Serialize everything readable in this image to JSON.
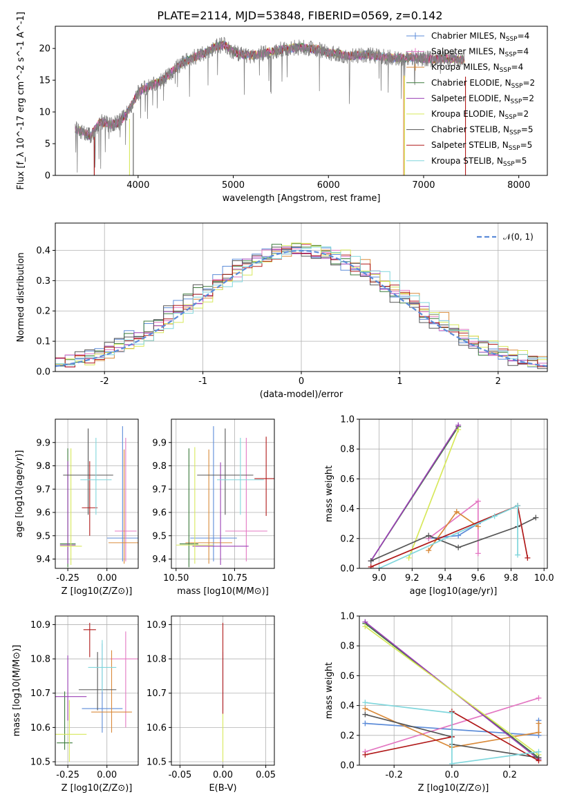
{
  "figure": {
    "title": "PLATE=2114, MJD=53848, FIBERID=0569, z=0.142"
  },
  "models": [
    {
      "name": "Chabrier MILES, N$_{SSP}$=4",
      "label_main": "Chabrier MILES, N",
      "label_sub": "SSP",
      "label_tail": "=4",
      "color": "#5B8BD8"
    },
    {
      "name": "Salpeter MILES, N$_{SSP}$=4",
      "label_main": "Salpeter MILES, N",
      "label_sub": "SSP",
      "label_tail": "=4",
      "color": "#E377C2"
    },
    {
      "name": "Kroupa MILES, N$_{SSP}$=4",
      "label_main": "Kroupa MILES, N",
      "label_sub": "SSP",
      "label_tail": "=4",
      "color": "#D98A3A"
    },
    {
      "name": "Chabrier ELODIE, N$_{SSP}$=2",
      "label_main": "Chabrier ELODIE, N",
      "label_sub": "SSP",
      "label_tail": "=2",
      "color": "#3A7A3A"
    },
    {
      "name": "Salpeter ELODIE, N$_{SSP}$=2",
      "label_main": "Salpeter ELODIE, N",
      "label_sub": "SSP",
      "label_tail": "=2",
      "color": "#9A3FB5"
    },
    {
      "name": "Kroupa ELODIE, N$_{SSP}$=2",
      "label_main": "Kroupa ELODIE, N",
      "label_sub": "SSP",
      "label_tail": "=2",
      "color": "#D7E85A"
    },
    {
      "name": "Chabrier STELIB, N$_{SSP}$=5",
      "label_main": "Chabrier STELIB, N",
      "label_sub": "SSP",
      "label_tail": "=5",
      "color": "#555555"
    },
    {
      "name": "Salpeter STELIB, N$_{SSP}$=5",
      "label_main": "Salpeter STELIB, N",
      "label_sub": "SSP",
      "label_tail": "=5",
      "color": "#B01818"
    },
    {
      "name": "Kroupa STELIB, N$_{SSP}$=5",
      "label_main": "Kroupa STELIB, N",
      "label_sub": "SSP",
      "label_tail": "=5",
      "color": "#7FD6DC"
    }
  ],
  "chart_data": [
    {
      "id": "spectrum",
      "type": "line",
      "xlabel": "wavelength [Angstrom, rest frame]",
      "ylabel": "Flux [f_λ 10^-17 erg cm^-2 s^-1 A^-1]",
      "xlim": [
        3130,
        8300
      ],
      "ylim": [
        0,
        23.5
      ],
      "xticks": [
        4000,
        5000,
        6000,
        7000,
        8000
      ],
      "yticks": [
        0,
        5,
        10,
        15,
        20
      ],
      "data_range_A": [
        3340,
        7430
      ],
      "envelope": [
        [
          3340,
          7.3
        ],
        [
          3500,
          6.2
        ],
        [
          3600,
          8.5
        ],
        [
          3700,
          8.0
        ],
        [
          3800,
          8.3
        ],
        [
          3900,
          10.2
        ],
        [
          4000,
          13.0
        ],
        [
          4100,
          14.0
        ],
        [
          4200,
          14.5
        ],
        [
          4300,
          15.5
        ],
        [
          4400,
          17.0
        ],
        [
          4500,
          18.0
        ],
        [
          4600,
          18.7
        ],
        [
          4700,
          19.3
        ],
        [
          4800,
          20.2
        ],
        [
          4900,
          20.6
        ],
        [
          5000,
          19.5
        ],
        [
          5100,
          19.0
        ],
        [
          5200,
          18.9
        ],
        [
          5300,
          19.2
        ],
        [
          5400,
          19.5
        ],
        [
          5500,
          19.8
        ],
        [
          5600,
          20.0
        ],
        [
          5700,
          20.2
        ],
        [
          5800,
          20.0
        ],
        [
          5900,
          19.8
        ],
        [
          6000,
          19.3
        ],
        [
          6100,
          19.2
        ],
        [
          6200,
          18.8
        ],
        [
          6300,
          18.9
        ],
        [
          6400,
          19.0
        ],
        [
          6500,
          18.8
        ],
        [
          6600,
          18.6
        ],
        [
          6700,
          18.5
        ],
        [
          6800,
          18.5
        ],
        [
          6900,
          18.6
        ],
        [
          7000,
          18.4
        ],
        [
          7100,
          18.3
        ],
        [
          7200,
          18.4
        ],
        [
          7300,
          18.4
        ],
        [
          7430,
          18.3
        ]
      ],
      "drop_edges_A": [
        [
          3540,
          3
        ],
        [
          3910,
          5
        ],
        [
          3950,
          4
        ],
        [
          6790,
          6
        ],
        [
          6800,
          8
        ],
        [
          7440,
          2
        ]
      ],
      "legend_position": "upper right"
    },
    {
      "id": "residual_hist",
      "type": "line",
      "xlabel": "(data-model)/error",
      "ylabel": "Normed distribution",
      "xlim": [
        -2.5,
        2.5
      ],
      "ylim": [
        0,
        0.49
      ],
      "xticks": [
        -2,
        -1,
        0,
        1,
        2
      ],
      "yticks": [
        0.0,
        0.1,
        0.2,
        0.3,
        0.4
      ],
      "bin_width": 0.1,
      "reference_curve": {
        "name": "N(0,1)",
        "label": "𝒩(0, 1)",
        "color": "#5B8BD8",
        "dashed": true
      },
      "histogram_amplitude": 0.405,
      "histogram_offset": 0.1,
      "legend_position": "upper right"
    },
    {
      "id": "age_vs_Z",
      "type": "scatter",
      "xlabel": "Z [log10(Z/Z⊙)]",
      "ylabel": "age [log10(age/yr)]",
      "xlim": [
        -0.33,
        0.2
      ],
      "ylim": [
        9.36,
        10.0
      ],
      "xticks": [
        -0.25,
        0.0
      ],
      "yticks": [
        9.4,
        9.5,
        9.6,
        9.7,
        9.8,
        9.9
      ],
      "points": [
        {
          "model": 0,
          "x": 0.1,
          "y": 9.49,
          "xerr": 0.1,
          "yerr": [
            0.1,
            0.48
          ]
        },
        {
          "model": 1,
          "x": 0.12,
          "y": 9.52,
          "xerr": 0.07,
          "yerr": [
            0.13,
            0.4
          ]
        },
        {
          "model": 2,
          "x": 0.11,
          "y": 9.47,
          "xerr": 0.1,
          "yerr": [
            0.09,
            0.4
          ]
        },
        {
          "model": 3,
          "x": -0.25,
          "y": 9.465,
          "xerr": 0.05,
          "yerr": [
            0.1,
            0.41
          ]
        },
        {
          "model": 4,
          "x": -0.25,
          "y": 9.46,
          "xerr": 0.05,
          "yerr": [
            0.08,
            0.36
          ]
        },
        {
          "model": 5,
          "x": -0.23,
          "y": 9.455,
          "xerr": 0.07,
          "yerr": [
            0.08,
            0.42
          ]
        },
        {
          "model": 6,
          "x": -0.12,
          "y": 9.76,
          "xerr": 0.16,
          "yerr": [
            0.17,
            0.2
          ]
        },
        {
          "model": 7,
          "x": -0.11,
          "y": 9.62,
          "xerr": 0.05,
          "yerr": [
            0.12,
            0.2
          ]
        },
        {
          "model": 8,
          "x": -0.07,
          "y": 9.74,
          "xerr": 0.1,
          "yerr": [
            0.15,
            0.18
          ]
        }
      ]
    },
    {
      "id": "age_vs_mass",
      "type": "scatter",
      "xlabel": "mass [log10(M/M⊙)]",
      "ylabel": "",
      "xlim": [
        10.48,
        10.92
      ],
      "ylim": [
        9.36,
        10.0
      ],
      "xticks": [
        10.5,
        10.75
      ],
      "yticks": [
        9.4,
        9.5,
        9.6,
        9.7,
        9.8,
        9.9
      ],
      "points": [
        {
          "model": 0,
          "x": 10.66,
          "y": 9.49,
          "xerr": 0.1,
          "yerr": [
            0.1,
            0.48
          ]
        },
        {
          "model": 1,
          "x": 10.8,
          "y": 9.52,
          "xerr": 0.09,
          "yerr": [
            0.13,
            0.4
          ]
        },
        {
          "model": 2,
          "x": 10.64,
          "y": 9.47,
          "xerr": 0.1,
          "yerr": [
            0.09,
            0.4
          ]
        },
        {
          "model": 3,
          "x": 10.555,
          "y": 9.465,
          "xerr": 0.04,
          "yerr": [
            0.1,
            0.41
          ]
        },
        {
          "model": 4,
          "x": 10.69,
          "y": 9.455,
          "xerr": 0.12,
          "yerr": [
            0.08,
            0.36
          ]
        },
        {
          "model": 5,
          "x": 10.58,
          "y": 9.46,
          "xerr": 0.08,
          "yerr": [
            0.08,
            0.42
          ]
        },
        {
          "model": 6,
          "x": 10.71,
          "y": 9.76,
          "xerr": 0.12,
          "yerr": [
            0.17,
            0.2
          ]
        },
        {
          "model": 7,
          "x": 10.885,
          "y": 9.745,
          "xerr": 0.05,
          "yerr": [
            0.16,
            0.18
          ]
        },
        {
          "model": 8,
          "x": 10.775,
          "y": 9.74,
          "xerr": 0.1,
          "yerr": [
            0.15,
            0.18
          ]
        }
      ]
    },
    {
      "id": "weight_vs_age",
      "type": "line",
      "xlabel": "age [log10(age/yr)]",
      "ylabel": "mass weight",
      "xlim": [
        8.88,
        10.02
      ],
      "ylim": [
        0,
        1.0
      ],
      "xticks": [
        9.0,
        9.2,
        9.4,
        9.6,
        9.8,
        10.0
      ],
      "yticks": [
        0.0,
        0.2,
        0.4,
        0.6,
        0.8,
        1.0
      ],
      "series": [
        {
          "model": 0,
          "x": [
            9.3,
            9.48,
            9.6
          ],
          "y": [
            0.2,
            0.22,
            0.3
          ]
        },
        {
          "model": 1,
          "x": [
            9.3,
            9.6,
            9.6
          ],
          "y": [
            0.2,
            0.45,
            0.1
          ]
        },
        {
          "model": 2,
          "x": [
            9.3,
            9.47,
            9.6
          ],
          "y": [
            0.12,
            0.38,
            0.28
          ]
        },
        {
          "model": 3,
          "x": [
            8.95,
            9.48
          ],
          "y": [
            0.05,
            0.95
          ]
        },
        {
          "model": 4,
          "x": [
            8.95,
            9.48
          ],
          "y": [
            0.05,
            0.96
          ]
        },
        {
          "model": 5,
          "x": [
            9.18,
            9.48
          ],
          "y": [
            0.07,
            0.93
          ]
        },
        {
          "model": 6,
          "x": [
            8.95,
            9.3,
            9.48,
            9.84,
            9.95
          ],
          "y": [
            0.05,
            0.22,
            0.14,
            0.28,
            0.34
          ]
        },
        {
          "model": 7,
          "x": [
            8.95,
            9.84,
            9.9
          ],
          "y": [
            0.01,
            0.42,
            0.07
          ]
        },
        {
          "model": 8,
          "x": [
            9.0,
            9.7,
            9.84,
            9.84
          ],
          "y": [
            0.0,
            0.35,
            0.42,
            0.09
          ]
        }
      ]
    },
    {
      "id": "mass_vs_Z",
      "type": "scatter",
      "xlabel": "Z [log10(Z/Z⊙)]",
      "ylabel": "mass [log10(M/M⊙)]",
      "xlim": [
        -0.33,
        0.2
      ],
      "ylim": [
        10.49,
        10.925
      ],
      "xticks": [
        -0.25,
        0.0
      ],
      "yticks": [
        10.5,
        10.6,
        10.7,
        10.8,
        10.9
      ],
      "points": [
        {
          "model": 0,
          "x": -0.03,
          "y": 10.655,
          "xerr": 0.13,
          "yerr": [
            0.07,
            0.19
          ]
        },
        {
          "model": 1,
          "x": 0.12,
          "y": 10.8,
          "xerr": 0.1,
          "yerr": [
            0.2,
            0.08
          ]
        },
        {
          "model": 2,
          "x": 0.03,
          "y": 10.645,
          "xerr": 0.13,
          "yerr": [
            0.06,
            0.18
          ]
        },
        {
          "model": 3,
          "x": -0.27,
          "y": 10.555,
          "xerr": 0.05,
          "yerr": [
            0.02,
            0.15
          ]
        },
        {
          "model": 4,
          "x": -0.25,
          "y": 10.69,
          "xerr": 0.12,
          "yerr": [
            0.07,
            0.12
          ]
        },
        {
          "model": 5,
          "x": -0.24,
          "y": 10.58,
          "xerr": 0.11,
          "yerr": [
            0.08,
            0.1
          ]
        },
        {
          "model": 6,
          "x": -0.06,
          "y": 10.71,
          "xerr": 0.12,
          "yerr": [
            0.06,
            0.11
          ]
        },
        {
          "model": 7,
          "x": -0.11,
          "y": 10.885,
          "xerr": 0.04,
          "yerr": [
            0.08,
            0.02
          ]
        },
        {
          "model": 8,
          "x": -0.03,
          "y": 10.775,
          "xerr": 0.09,
          "yerr": [
            0.07,
            0.08
          ]
        }
      ]
    },
    {
      "id": "mass_vs_ebv",
      "type": "scatter",
      "xlabel": "E(B-V)",
      "ylabel": "",
      "xlim": [
        -0.06,
        0.06
      ],
      "ylim": [
        10.49,
        10.925
      ],
      "xticks": [
        -0.05,
        0.0,
        0.05
      ],
      "yticks": [
        10.5,
        10.6,
        10.7,
        10.8,
        10.9
      ],
      "points": [
        {
          "model": 5,
          "x": 0.0,
          "y": 10.58,
          "xerr": 0,
          "yerr": [
            0.08,
            0.06
          ]
        },
        {
          "model": 0,
          "x": 0.0,
          "y": 10.7,
          "xerr": 0,
          "yerr": [
            0.05,
            0.12
          ]
        },
        {
          "model": 7,
          "x": 0.0,
          "y": 10.86,
          "xerr": 0,
          "yerr": [
            0.22,
            0.045
          ]
        }
      ]
    },
    {
      "id": "weight_vs_Z",
      "type": "line",
      "xlabel": "Z [log10(Z/Z⊙)]",
      "ylabel": "mass weight",
      "xlim": [
        -0.32,
        0.33
      ],
      "ylim": [
        0,
        1.0
      ],
      "xticks": [
        -0.2,
        0.0,
        0.2
      ],
      "yticks": [
        0.0,
        0.2,
        0.4,
        0.6,
        0.8,
        1.0
      ],
      "series": [
        {
          "model": 0,
          "x": [
            -0.3,
            0.3,
            0.3
          ],
          "y": [
            0.28,
            0.2,
            0.3
          ]
        },
        {
          "model": 1,
          "x": [
            -0.3,
            0.3
          ],
          "y": [
            0.09,
            0.45
          ]
        },
        {
          "model": 2,
          "x": [
            -0.3,
            0.0,
            0.3,
            0.3
          ],
          "y": [
            0.38,
            0.12,
            0.22,
            0.28
          ]
        },
        {
          "model": 3,
          "x": [
            -0.3,
            0.3
          ],
          "y": [
            0.95,
            0.05
          ]
        },
        {
          "model": 4,
          "x": [
            -0.3,
            0.3
          ],
          "y": [
            0.96,
            0.04
          ]
        },
        {
          "model": 5,
          "x": [
            -0.3,
            0.3
          ],
          "y": [
            0.93,
            0.07
          ]
        },
        {
          "model": 6,
          "x": [
            -0.3,
            0.0,
            0.0,
            0.3
          ],
          "y": [
            0.34,
            0.19,
            0.14,
            0.05
          ]
        },
        {
          "model": 7,
          "x": [
            -0.3,
            0.0,
            0.0,
            0.3
          ],
          "y": [
            0.07,
            0.19,
            0.36,
            0.03
          ]
        },
        {
          "model": 8,
          "x": [
            -0.3,
            0.0,
            0.0,
            0.3
          ],
          "y": [
            0.42,
            0.35,
            0.01,
            0.09
          ]
        }
      ]
    }
  ]
}
